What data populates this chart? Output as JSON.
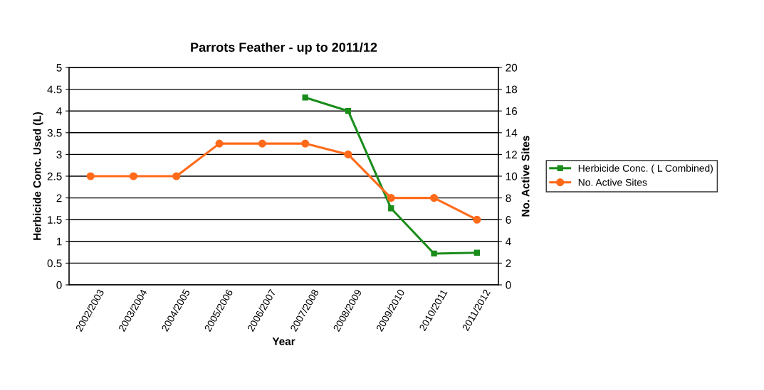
{
  "chart_data": {
    "type": "line",
    "title": "Parrots Feather - up to 2011/12",
    "xlabel": "Year",
    "ylabel": "Herbicide Conc. Used (L)",
    "y2label": "No. Active Sites",
    "categories": [
      "2002/2003",
      "2003/2004",
      "2004/2005",
      "2005/2006",
      "2006/2007",
      "2007/2008",
      "2008/2009",
      "2009/2010",
      "2010/2011",
      "2011/2012"
    ],
    "series": [
      {
        "name": "Herbicide Conc. ( L Combined)",
        "color": "#1a8c1a",
        "marker": "square",
        "values": [
          null,
          null,
          null,
          null,
          null,
          4.31,
          4.0,
          1.76,
          0.72,
          0.74
        ]
      },
      {
        "name": "No. Active Sites",
        "color": "#ff6a1a",
        "marker": "circle",
        "axis": "y2",
        "values": [
          10,
          10,
          10,
          13,
          13,
          13,
          12,
          8,
          8,
          6
        ]
      }
    ],
    "ylim": [
      0,
      5
    ],
    "yticks": [
      0,
      0.5,
      1,
      1.5,
      2,
      2.5,
      3,
      3.5,
      4,
      4.5,
      5
    ],
    "y2lim": [
      0,
      20
    ],
    "y2ticks": [
      0,
      2,
      4,
      6,
      8,
      10,
      12,
      14,
      16,
      18,
      20
    ],
    "grid": "y",
    "legend": "right",
    "line_style": "solid"
  }
}
